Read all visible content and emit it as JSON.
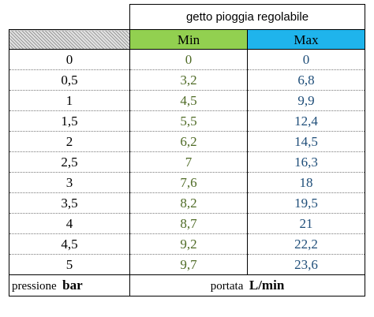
{
  "title": "getto pioggia regolabile",
  "headers": {
    "min": "Min",
    "max": "Max"
  },
  "rows": [
    {
      "pressure": "0",
      "min": "0",
      "max": "0"
    },
    {
      "pressure": "0,5",
      "min": "3,2",
      "max": "6,8"
    },
    {
      "pressure": "1",
      "min": "4,5",
      "max": "9,9"
    },
    {
      "pressure": "1,5",
      "min": "5,5",
      "max": "12,4"
    },
    {
      "pressure": "2",
      "min": "6,2",
      "max": "14,5"
    },
    {
      "pressure": "2,5",
      "min": "7",
      "max": "16,3"
    },
    {
      "pressure": "3",
      "min": "7,6",
      "max": "18"
    },
    {
      "pressure": "3,5",
      "min": "8,2",
      "max": "19,5"
    },
    {
      "pressure": "4",
      "min": "8,7",
      "max": "21"
    },
    {
      "pressure": "4,5",
      "min": "9,2",
      "max": "22,2"
    },
    {
      "pressure": "5",
      "min": "9,7",
      "max": "23,6"
    }
  ],
  "footer": {
    "pressure_label": "pressione",
    "pressure_unit": "bar",
    "flow_label": "portata",
    "flow_unit": "L/min"
  },
  "colors": {
    "min_header_bg": "#92d050",
    "max_header_bg": "#1fb4ec",
    "min_values": "#4f6b26",
    "max_values": "#1f4e79"
  }
}
